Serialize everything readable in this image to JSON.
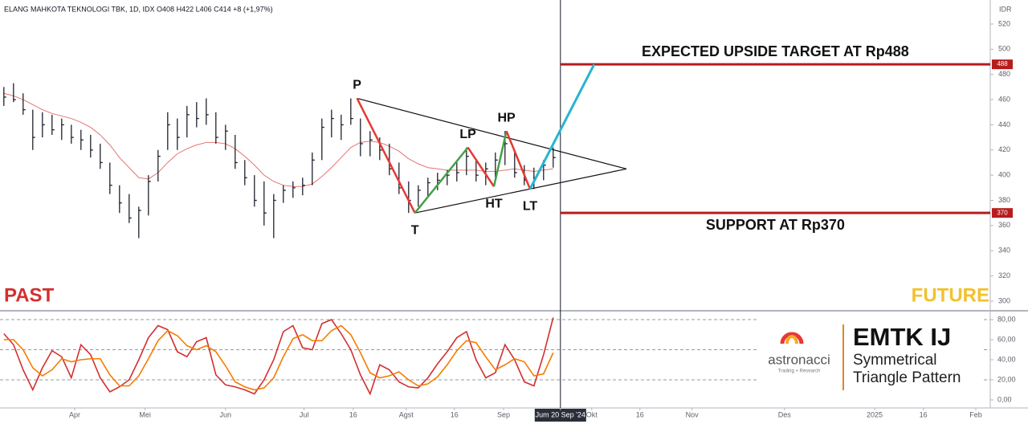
{
  "header": {
    "ticker_info": "ELANG MAHKOTA TEKNOLOGI TBK, 1D, IDX  O408  H422  L406  C414  +8 (+1,97%)",
    "currency": "IDR"
  },
  "branding": {
    "logo": "astronacci",
    "tagline": "Trading + Research",
    "ticker": "EMTK IJ",
    "pattern_line1": "Symmetrical",
    "pattern_line2": "Triangle Pattern"
  },
  "chart_data": [
    {
      "type": "ohlc",
      "past_label": "PAST",
      "future_label": "FUTURE",
      "xlim": [
        -0.8,
        204.7
      ],
      "ylim": [
        293.6,
        539.1
      ],
      "yticks": [
        300,
        320,
        340,
        360,
        380,
        400,
        420,
        440,
        460,
        480,
        500,
        520
      ],
      "xticks": [
        {
          "value": 14.7,
          "label": "Apr"
        },
        {
          "value": 29.3,
          "label": "Mei"
        },
        {
          "value": 46,
          "label": "Jun"
        },
        {
          "value": 62.3,
          "label": "Jul"
        },
        {
          "value": 72.5,
          "label": "16"
        },
        {
          "value": 83.5,
          "label": "Agst"
        },
        {
          "value": 93.5,
          "label": "16"
        },
        {
          "value": 103.7,
          "label": "Sep"
        },
        {
          "value": 115.5,
          "label": "Jum 20 Sep '24",
          "highlight": true
        },
        {
          "value": 122,
          "label": "Okt"
        },
        {
          "value": 132,
          "label": "16"
        },
        {
          "value": 142.8,
          "label": "Nov"
        },
        {
          "value": 162,
          "label": "Des"
        },
        {
          "value": 180.7,
          "label": "2025"
        },
        {
          "value": 190.8,
          "label": "16"
        },
        {
          "value": 201.7,
          "label": "Feb"
        }
      ],
      "color": "#1e222d",
      "x": [
        0,
        2,
        4,
        6,
        8,
        10,
        12,
        14,
        16,
        18,
        20,
        22,
        24,
        26,
        28,
        30,
        32,
        34,
        36,
        38,
        40,
        42,
        44,
        46,
        48,
        50,
        52,
        54,
        56,
        58,
        60,
        62,
        64,
        66,
        68,
        70,
        72,
        74,
        76,
        78,
        80,
        82,
        84,
        86,
        88,
        90,
        92,
        94,
        96,
        98,
        100,
        102,
        104,
        106,
        108,
        110,
        112,
        114
      ],
      "high": [
        470,
        473,
        465,
        452,
        450,
        448,
        445,
        440,
        436,
        432,
        425,
        410,
        392,
        385,
        375,
        400,
        420,
        450,
        445,
        455,
        458,
        461,
        450,
        440,
        432,
        412,
        400,
        395,
        385,
        392,
        395,
        398,
        418,
        445,
        452,
        448,
        461,
        445,
        435,
        430,
        425,
        410,
        395,
        392,
        398,
        402,
        404,
        410,
        422,
        412,
        410,
        418,
        435,
        420,
        408,
        406,
        412,
        422
      ],
      "low": [
        455,
        458,
        448,
        420,
        430,
        432,
        428,
        425,
        420,
        414,
        405,
        385,
        370,
        362,
        350,
        368,
        395,
        420,
        420,
        430,
        438,
        440,
        425,
        420,
        405,
        392,
        375,
        360,
        350,
        378,
        382,
        384,
        392,
        412,
        430,
        428,
        440,
        415,
        415,
        412,
        400,
        385,
        370,
        375,
        382,
        388,
        392,
        395,
        400,
        395,
        392,
        398,
        408,
        398,
        392,
        389,
        396,
        406
      ],
      "close": [
        462,
        460,
        452,
        430,
        440,
        436,
        440,
        430,
        428,
        420,
        410,
        392,
        378,
        366,
        372,
        395,
        415,
        440,
        430,
        448,
        445,
        448,
        430,
        435,
        410,
        398,
        380,
        370,
        380,
        388,
        390,
        392,
        412,
        438,
        445,
        440,
        445,
        425,
        428,
        420,
        405,
        390,
        380,
        388,
        394,
        396,
        400,
        402,
        415,
        400,
        405,
        412,
        425,
        402,
        396,
        398,
        408,
        414
      ],
      "series": [
        {
          "color": "#e57373",
          "values": [
            465,
            463,
            460,
            456,
            452,
            449,
            447,
            445,
            442,
            438,
            432,
            424,
            414,
            406,
            398,
            397,
            402,
            410,
            417,
            421,
            424,
            426,
            426,
            425,
            421,
            415,
            408,
            400,
            395,
            392,
            391,
            391,
            393,
            399,
            406,
            414,
            422,
            426,
            427,
            426,
            423,
            419,
            413,
            409,
            406,
            405,
            404,
            404,
            404,
            404,
            403,
            403,
            404,
            405,
            404,
            403,
            404,
            405
          ]
        }
      ],
      "levels": [
        {
          "value": 488,
          "label": "EXPECTED UPSIDE TARGET AT Rp488",
          "color": "#b71c1c"
        },
        {
          "value": 370,
          "label": "SUPPORT AT Rp370",
          "color": "#b71c1c"
        }
      ],
      "pattern": {
        "points": [
          {
            "label": "P",
            "x": 73.3,
            "y": 461
          },
          {
            "label": "T",
            "x": 85.3,
            "y": 370
          },
          {
            "label": "LP",
            "x": 96.3,
            "y": 422
          },
          {
            "label": "HT",
            "x": 101.7,
            "y": 391
          },
          {
            "label": "HP",
            "x": 104.3,
            "y": 435
          },
          {
            "label": "LT",
            "x": 109.2,
            "y": 389
          }
        ],
        "segment_colors": [
          "#e53935",
          "#43a047",
          "#e53935",
          "#43a047",
          "#e53935"
        ],
        "apex": {
          "x": 129.2,
          "y": 405
        },
        "triangle_color": "#111111",
        "projection": {
          "x": [
            109.2,
            122.5
          ],
          "y": [
            389,
            488
          ],
          "color": "#26b5d1"
        }
      }
    },
    {
      "type": "line",
      "xlim": [
        -0.8,
        204.7
      ],
      "ylim": [
        -8,
        88
      ],
      "yticks": [
        {
          "value": 0,
          "label": "0,00"
        },
        {
          "value": 20,
          "label": "20,00"
        },
        {
          "value": 40,
          "label": "40,00"
        },
        {
          "value": 60,
          "label": "60,00"
        },
        {
          "value": 80,
          "label": "80,00"
        }
      ],
      "reference_lines": [
        20,
        50,
        80
      ],
      "x": [
        0,
        2,
        4,
        6,
        8,
        10,
        12,
        14,
        16,
        18,
        20,
        22,
        24,
        26,
        28,
        30,
        32,
        34,
        36,
        38,
        40,
        42,
        44,
        46,
        48,
        50,
        52,
        54,
        56,
        58,
        60,
        62,
        64,
        66,
        68,
        70,
        72,
        74,
        76,
        78,
        80,
        82,
        84,
        86,
        88,
        90,
        92,
        94,
        96,
        98,
        100,
        102,
        104,
        106,
        108,
        110,
        112,
        114
      ],
      "series": [
        {
          "color": "#d32f2f",
          "values": [
            66,
            55,
            30,
            10,
            32,
            49,
            43,
            22,
            55,
            45,
            22,
            8,
            13,
            20,
            40,
            62,
            74,
            70,
            48,
            43,
            58,
            62,
            25,
            15,
            13,
            10,
            6,
            20,
            40,
            68,
            74,
            52,
            50,
            76,
            80,
            66,
            50,
            25,
            6,
            35,
            30,
            18,
            13,
            12,
            22,
            36,
            48,
            62,
            68,
            40,
            22,
            27,
            55,
            40,
            18,
            14,
            45,
            82
          ]
        },
        {
          "color": "#f57c00",
          "values": [
            60,
            60,
            50,
            32,
            24,
            30,
            41,
            38,
            40,
            41,
            41,
            25,
            14,
            14,
            24,
            41,
            59,
            69,
            64,
            54,
            50,
            54,
            48,
            34,
            18,
            13,
            10,
            12,
            22,
            43,
            61,
            65,
            59,
            59,
            69,
            74,
            65,
            47,
            27,
            22,
            24,
            28,
            20,
            14,
            16,
            23,
            35,
            49,
            59,
            57,
            43,
            30,
            35,
            41,
            38,
            24,
            26,
            47
          ]
        }
      ]
    }
  ]
}
